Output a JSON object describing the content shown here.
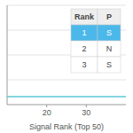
{
  "chart_data": {
    "type": "line",
    "xlabel": "Signal Rank (Top 50)",
    "x": [
      10,
      40
    ],
    "values": [
      0.08,
      0.08
    ],
    "color": "#5bc8d5",
    "xlim": [
      10,
      40
    ],
    "xticks": [
      20,
      30
    ],
    "ylim": [
      0,
      1
    ],
    "yticks": [
      0.25,
      0.5,
      0.75,
      1
    ],
    "grid": true,
    "tick_labels": "x",
    "table": {
      "headers": [
        "Rank",
        "P"
      ],
      "rows": [
        [
          "1",
          "S"
        ],
        [
          "2",
          "N"
        ],
        [
          "3",
          "S"
        ]
      ],
      "color": "#4cb8ea"
    }
  }
}
